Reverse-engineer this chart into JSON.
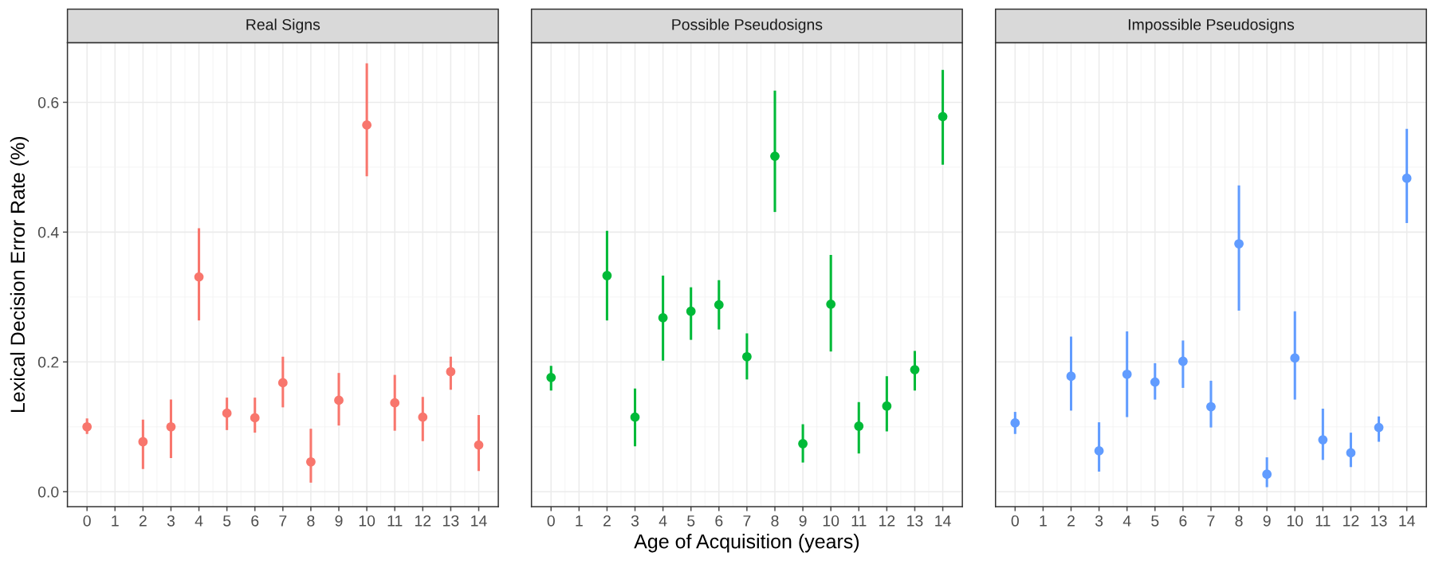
{
  "chart_data": [
    {
      "type": "scatter",
      "title": "Real Signs",
      "ylabel": "Lexical Decision Error Rate (%)",
      "xlim": [
        -0.7,
        14.7
      ],
      "xticks": [
        0,
        1,
        2,
        3,
        4,
        5,
        6,
        7,
        8,
        9,
        10,
        11,
        12,
        13,
        14
      ],
      "ylim": [
        -0.023,
        0.692
      ],
      "yticks": [
        {
          "value": 0,
          "label": "0.0"
        },
        {
          "value": 0.2,
          "label": "0.2"
        },
        {
          "value": 0.4,
          "label": "0.4"
        },
        {
          "value": 0.6,
          "label": "0.6"
        }
      ],
      "grid": true,
      "marker": "circle",
      "series": [
        {
          "color": "#f8766d",
          "x": [
            0,
            2,
            3,
            4,
            5,
            6,
            7,
            8,
            9,
            10,
            11,
            12,
            13,
            14
          ],
          "values": [
            0.1,
            0.077,
            0.1,
            0.331,
            0.121,
            0.114,
            0.168,
            0.046,
            0.141,
            0.565,
            0.137,
            0.115,
            0.185,
            0.072
          ],
          "errors": [
            [
              0.089,
              0.113
            ],
            [
              0.035,
              0.111
            ],
            [
              0.052,
              0.142
            ],
            [
              0.264,
              0.406
            ],
            [
              0.095,
              0.145
            ],
            [
              0.091,
              0.145
            ],
            [
              0.13,
              0.208
            ],
            [
              0.014,
              0.097
            ],
            [
              0.102,
              0.183
            ],
            [
              0.486,
              0.66
            ],
            [
              0.094,
              0.18
            ],
            [
              0.078,
              0.146
            ],
            [
              0.157,
              0.208
            ],
            [
              0.032,
              0.118
            ]
          ]
        }
      ]
    },
    {
      "type": "scatter",
      "title": "Possible Pseudosigns",
      "xlabel": "Age of Acquisition (years)",
      "xlim": [
        -0.7,
        14.7
      ],
      "xticks": [
        0,
        1,
        2,
        3,
        4,
        5,
        6,
        7,
        8,
        9,
        10,
        11,
        12,
        13,
        14
      ],
      "ylim": [
        -0.023,
        0.692
      ],
      "yticks": [
        {
          "value": 0,
          "label": null
        },
        {
          "value": 0.2,
          "label": null
        },
        {
          "value": 0.4,
          "label": null
        },
        {
          "value": 0.6,
          "label": null
        }
      ],
      "tick_labels": "x",
      "grid": true,
      "marker": "circle",
      "series": [
        {
          "color": "#00ba38",
          "x": [
            0,
            2,
            3,
            4,
            5,
            6,
            7,
            8,
            9,
            10,
            11,
            12,
            13,
            14
          ],
          "values": [
            0.176,
            0.333,
            0.115,
            0.268,
            0.278,
            0.288,
            0.208,
            0.517,
            0.074,
            0.289,
            0.101,
            0.132,
            0.188,
            0.578
          ],
          "errors": [
            [
              0.156,
              0.194
            ],
            [
              0.264,
              0.402
            ],
            [
              0.07,
              0.159
            ],
            [
              0.202,
              0.333
            ],
            [
              0.234,
              0.315
            ],
            [
              0.25,
              0.326
            ],
            [
              0.173,
              0.244
            ],
            [
              0.431,
              0.618
            ],
            [
              0.045,
              0.104
            ],
            [
              0.216,
              0.365
            ],
            [
              0.059,
              0.138
            ],
            [
              0.093,
              0.178
            ],
            [
              0.156,
              0.217
            ],
            [
              0.504,
              0.65
            ]
          ]
        }
      ]
    },
    {
      "type": "scatter",
      "title": "Impossible Pseudosigns",
      "xlim": [
        -0.7,
        14.7
      ],
      "xticks": [
        0,
        1,
        2,
        3,
        4,
        5,
        6,
        7,
        8,
        9,
        10,
        11,
        12,
        13,
        14
      ],
      "ylim": [
        -0.023,
        0.692
      ],
      "yticks": [
        {
          "value": 0,
          "label": null
        },
        {
          "value": 0.2,
          "label": null
        },
        {
          "value": 0.4,
          "label": null
        },
        {
          "value": 0.6,
          "label": null
        }
      ],
      "tick_labels": "x",
      "grid": true,
      "marker": "circle",
      "series": [
        {
          "color": "#619cff",
          "x": [
            0,
            2,
            3,
            4,
            5,
            6,
            7,
            8,
            9,
            10,
            11,
            12,
            13,
            14
          ],
          "values": [
            0.106,
            0.178,
            0.063,
            0.181,
            0.169,
            0.201,
            0.131,
            0.382,
            0.027,
            0.206,
            0.08,
            0.06,
            0.099,
            0.483
          ],
          "errors": [
            [
              0.089,
              0.123
            ],
            [
              0.125,
              0.239
            ],
            [
              0.031,
              0.107
            ],
            [
              0.115,
              0.247
            ],
            [
              0.142,
              0.198
            ],
            [
              0.16,
              0.233
            ],
            [
              0.099,
              0.171
            ],
            [
              0.279,
              0.472
            ],
            [
              0.007,
              0.053
            ],
            [
              0.142,
              0.278
            ],
            [
              0.049,
              0.128
            ],
            [
              0.038,
              0.091
            ],
            [
              0.077,
              0.116
            ],
            [
              0.414,
              0.559
            ]
          ]
        }
      ]
    }
  ]
}
